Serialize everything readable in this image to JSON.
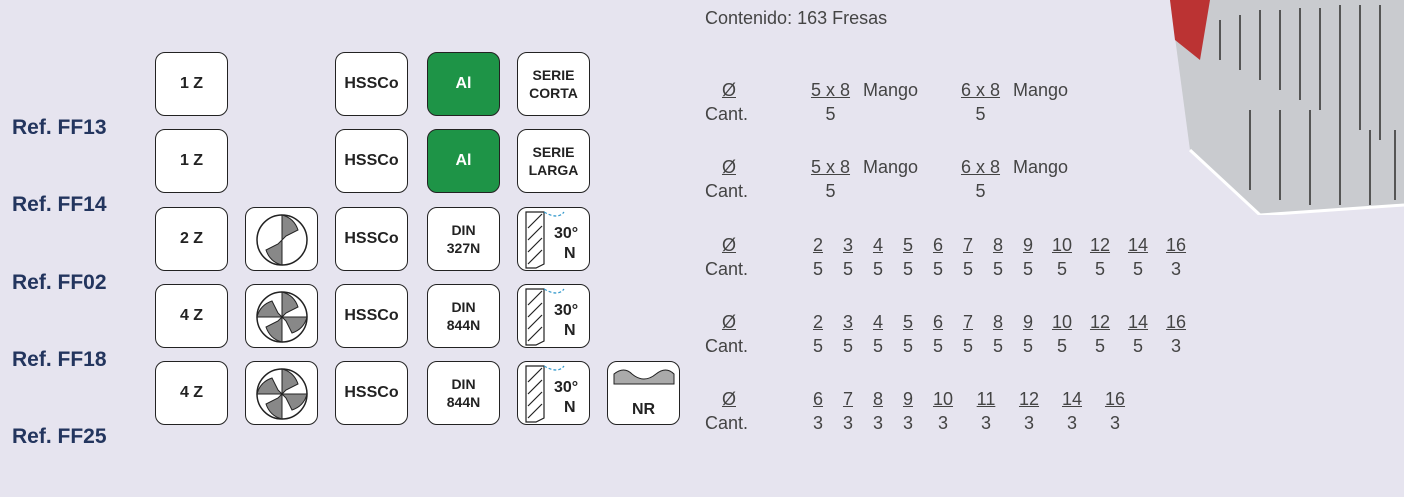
{
  "contents": "Contenido: 163 Fresas",
  "diameter_header": "Ø",
  "quantity_header": "Cant.",
  "rows": [
    {
      "ref": "Ref. FF13",
      "flutes": "1 Z",
      "material": "HSSCo",
      "norm": [
        "Al"
      ],
      "norm_color": "#1e9447",
      "series": [
        "SERIE",
        "CORTA"
      ],
      "items": [
        {
          "size": "5 x 8",
          "note": "Mango",
          "qty": 5
        },
        {
          "size": "6 x 8",
          "note": "Mango",
          "qty": 5
        }
      ]
    },
    {
      "ref": "Ref. FF14",
      "flutes": "1 Z",
      "material": "HSSCo",
      "norm": [
        "Al"
      ],
      "norm_color": "#1e9447",
      "series": [
        "SERIE",
        "LARGA"
      ],
      "items": [
        {
          "size": "5 x 8",
          "note": "Mango",
          "qty": 5
        },
        {
          "size": "6 x 8",
          "note": "Mango",
          "qty": 5
        }
      ]
    },
    {
      "ref": "Ref. FF02",
      "flutes": "2 Z",
      "material": "HSSCo",
      "norm": [
        "DIN",
        "327N"
      ],
      "helix": {
        "angle": "30°",
        "label": "N"
      },
      "items": [
        {
          "size": 2,
          "qty": 5
        },
        {
          "size": 3,
          "qty": 5
        },
        {
          "size": 4,
          "qty": 5
        },
        {
          "size": 5,
          "qty": 5
        },
        {
          "size": 6,
          "qty": 5
        },
        {
          "size": 7,
          "qty": 5
        },
        {
          "size": 8,
          "qty": 5
        },
        {
          "size": 9,
          "qty": 5
        },
        {
          "size": 10,
          "qty": 5
        },
        {
          "size": 12,
          "qty": 5
        },
        {
          "size": 14,
          "qty": 5
        },
        {
          "size": 16,
          "qty": 3
        }
      ]
    },
    {
      "ref": "Ref. FF18",
      "flutes": "4 Z",
      "material": "HSSCo",
      "norm": [
        "DIN",
        "844N"
      ],
      "helix": {
        "angle": "30°",
        "label": "N"
      },
      "items": [
        {
          "size": 2,
          "qty": 5
        },
        {
          "size": 3,
          "qty": 5
        },
        {
          "size": 4,
          "qty": 5
        },
        {
          "size": 5,
          "qty": 5
        },
        {
          "size": 6,
          "qty": 5
        },
        {
          "size": 7,
          "qty": 5
        },
        {
          "size": 8,
          "qty": 5
        },
        {
          "size": 9,
          "qty": 5
        },
        {
          "size": 10,
          "qty": 5
        },
        {
          "size": 12,
          "qty": 5
        },
        {
          "size": 14,
          "qty": 5
        },
        {
          "size": 16,
          "qty": 3
        }
      ]
    },
    {
      "ref": "Ref. FF25",
      "flutes": "4 Z",
      "material": "HSSCo",
      "norm": [
        "DIN",
        "844N"
      ],
      "helix": {
        "angle": "30°",
        "label": "N"
      },
      "profile": "NR",
      "items": [
        {
          "size": 6,
          "qty": 3
        },
        {
          "size": 7,
          "qty": 3
        },
        {
          "size": 8,
          "qty": 3
        },
        {
          "size": 9,
          "qty": 3
        },
        {
          "size": 10,
          "qty": 3
        },
        {
          "size": 11,
          "qty": 3
        },
        {
          "size": 12,
          "qty": 3
        },
        {
          "size": 14,
          "qty": 3
        },
        {
          "size": 16,
          "qty": 3
        }
      ]
    }
  ]
}
